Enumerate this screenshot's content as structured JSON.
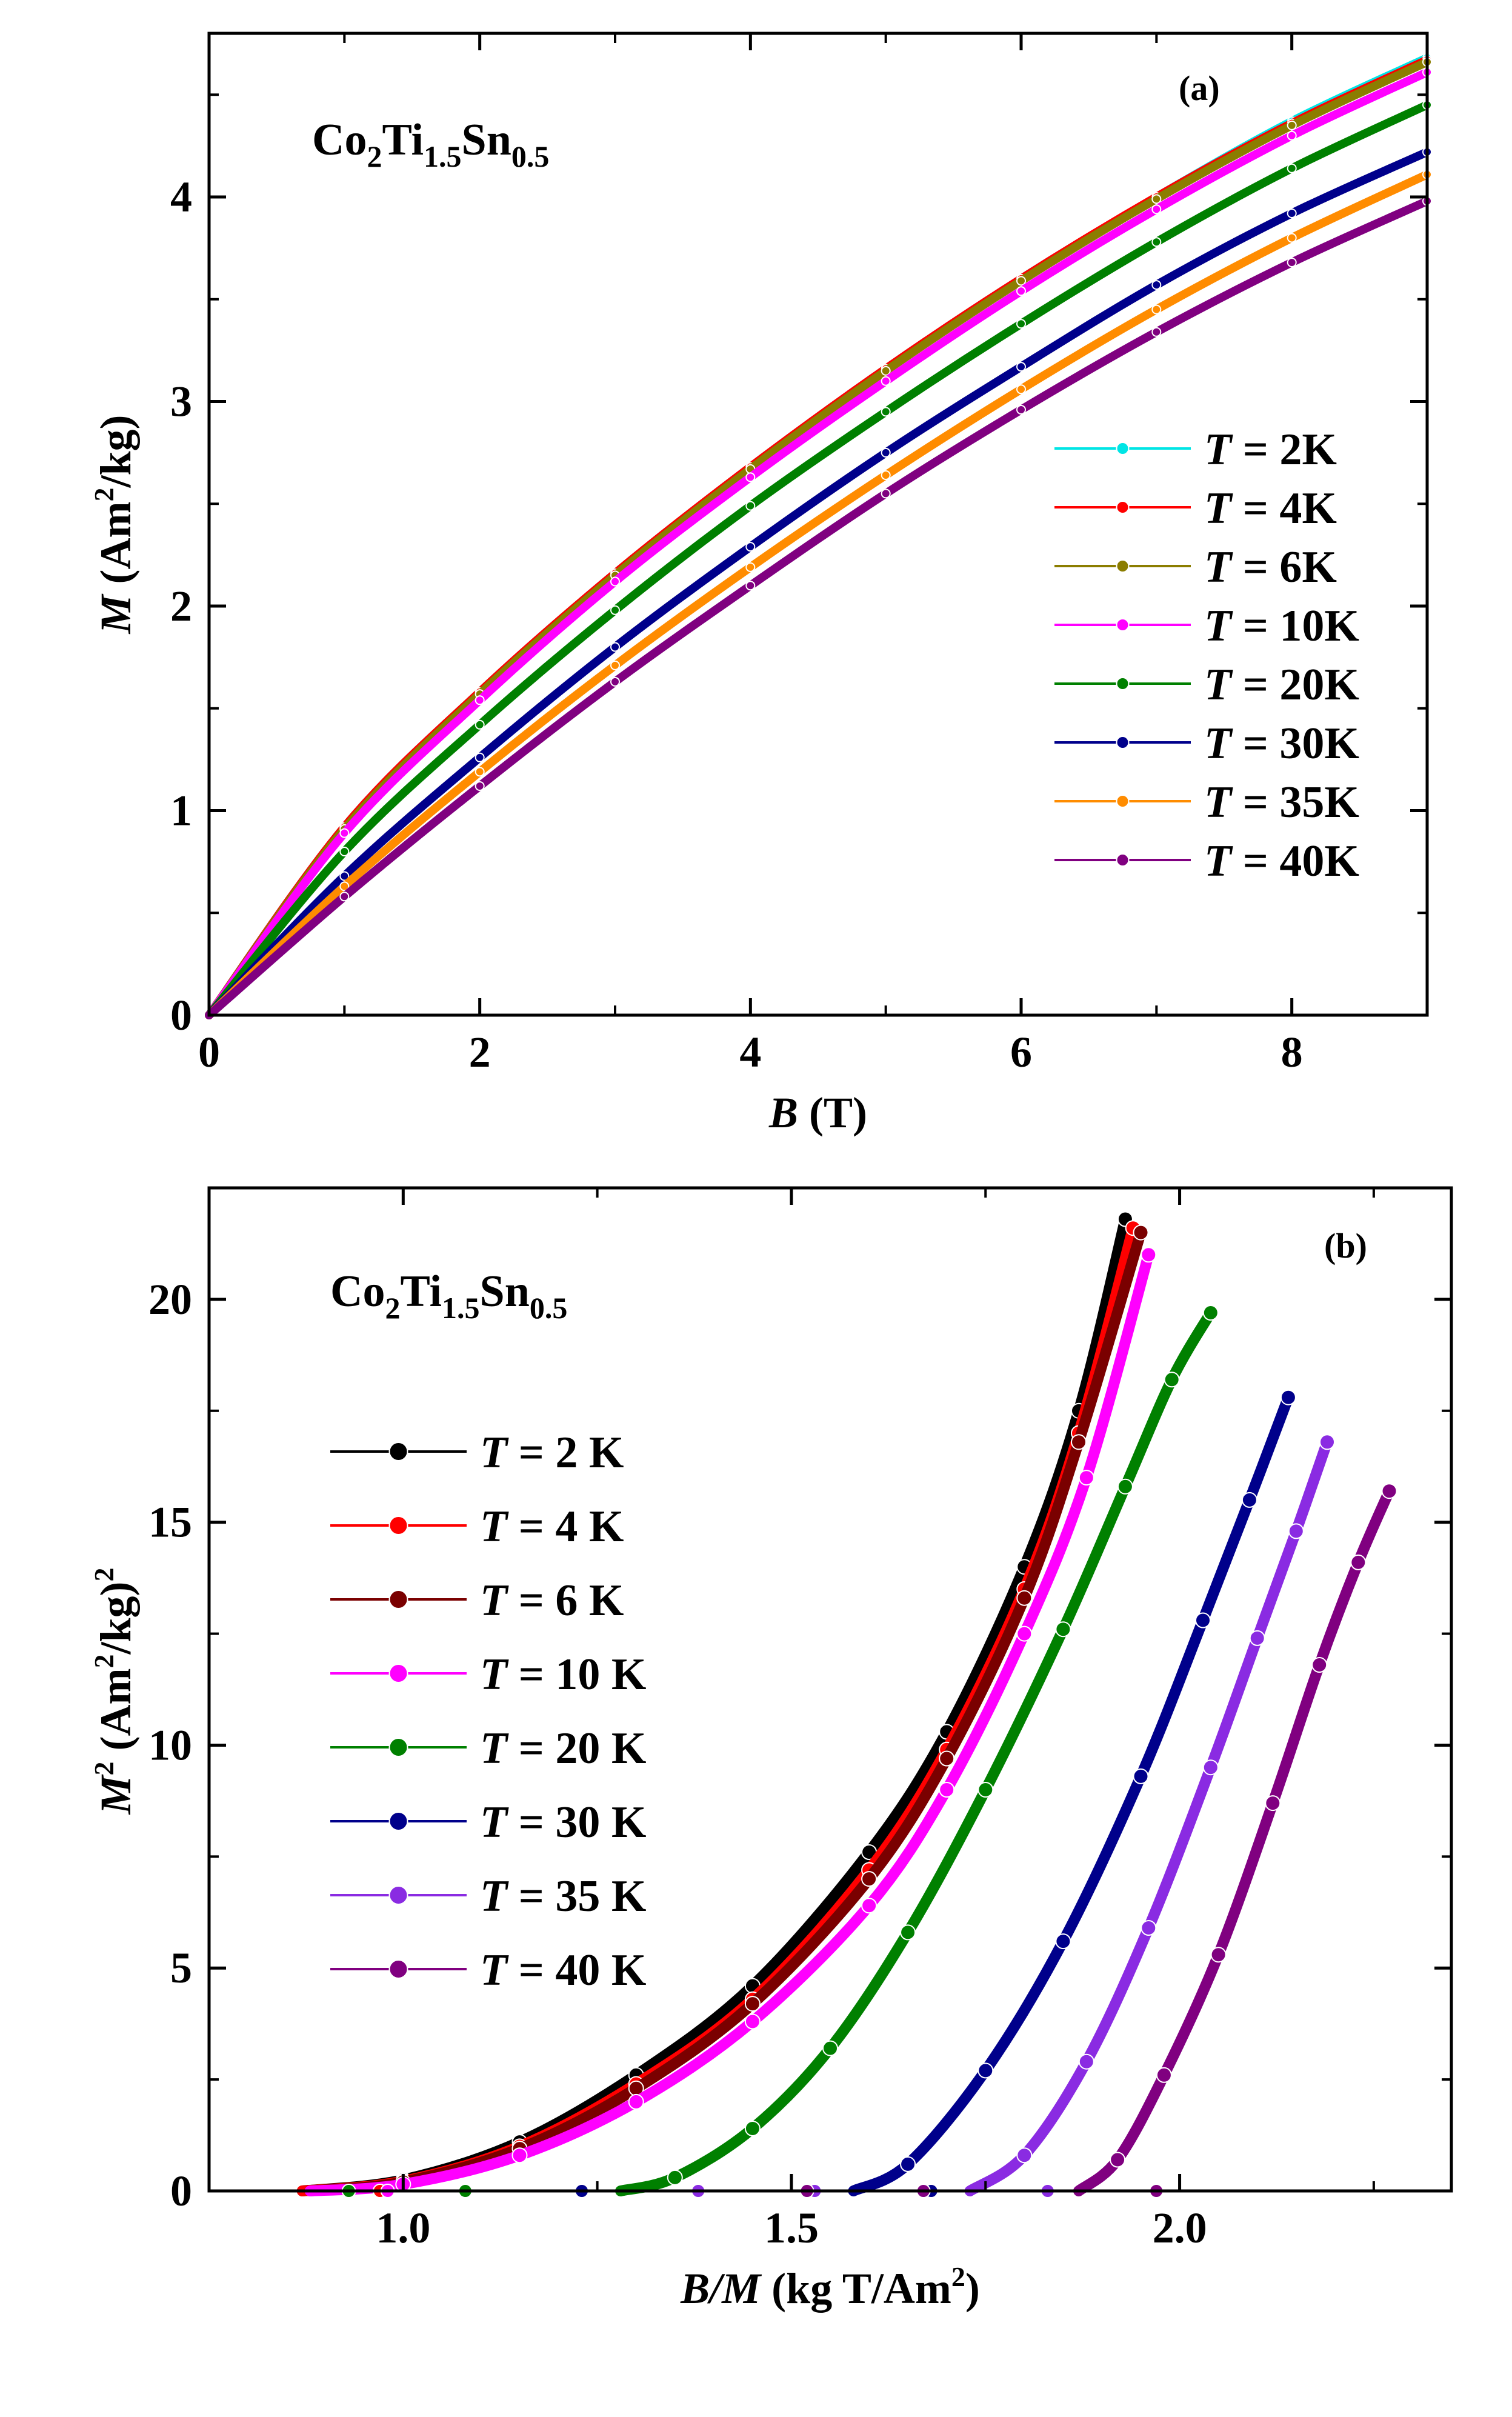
{
  "chart_data": [
    {
      "type": "line",
      "panel_label": "(a)",
      "compound": {
        "base": "Co",
        "s1": "2",
        "el2": "Ti",
        "s2": "1.5",
        "el3": "Sn",
        "s3": "0.5"
      },
      "xlabel": {
        "var": "B",
        "unit": " (T)"
      },
      "ylabel": {
        "var": "M",
        "unit_pre": " (Am",
        "sup": "2",
        "unit_post": "/kg)"
      },
      "xlim": [
        0,
        9
      ],
      "ylim": [
        0,
        4.8
      ],
      "xticks": [
        "0",
        "2",
        "4",
        "6",
        "8"
      ],
      "yticks": [
        "0",
        "1",
        "2",
        "3",
        "4"
      ],
      "legend_position": "right",
      "series": [
        {
          "name": "T = 2K",
          "temp": "2K",
          "color": "#00e5e5",
          "x": [
            0,
            1,
            2,
            3,
            4,
            5,
            6,
            7,
            8,
            9
          ],
          "y": [
            0,
            0.92,
            1.58,
            2.16,
            2.68,
            3.16,
            3.6,
            4.0,
            4.37,
            4.68
          ]
        },
        {
          "name": "T = 4K",
          "temp": "4K",
          "color": "#ff0000",
          "x": [
            0,
            1,
            2,
            3,
            4,
            5,
            6,
            7,
            8,
            9
          ],
          "y": [
            0,
            0.92,
            1.58,
            2.16,
            2.68,
            3.16,
            3.6,
            4.0,
            4.36,
            4.67
          ]
        },
        {
          "name": "T = 6K",
          "temp": "6K",
          "color": "#8b7d00",
          "x": [
            0,
            1,
            2,
            3,
            4,
            5,
            6,
            7,
            8,
            9
          ],
          "y": [
            0,
            0.91,
            1.57,
            2.15,
            2.67,
            3.15,
            3.59,
            3.99,
            4.35,
            4.66
          ]
        },
        {
          "name": "T = 10K",
          "temp": "10K",
          "color": "#ff00ff",
          "x": [
            0,
            1,
            2,
            3,
            4,
            5,
            6,
            7,
            8,
            9
          ],
          "y": [
            0,
            0.89,
            1.54,
            2.12,
            2.63,
            3.1,
            3.54,
            3.94,
            4.3,
            4.61
          ]
        },
        {
          "name": "T = 20K",
          "temp": "20K",
          "color": "#008000",
          "x": [
            0,
            1,
            2,
            3,
            4,
            5,
            6,
            7,
            8,
            9
          ],
          "y": [
            0,
            0.8,
            1.42,
            1.98,
            2.49,
            2.95,
            3.38,
            3.78,
            4.14,
            4.45
          ]
        },
        {
          "name": "T = 30K",
          "temp": "30K",
          "color": "#00008b",
          "x": [
            0,
            1,
            2,
            3,
            4,
            5,
            6,
            7,
            8,
            9
          ],
          "y": [
            0,
            0.68,
            1.26,
            1.8,
            2.29,
            2.75,
            3.17,
            3.57,
            3.92,
            4.22
          ]
        },
        {
          "name": "T = 35K",
          "temp": "35K",
          "color": "#ff8c00",
          "x": [
            0,
            1,
            2,
            3,
            4,
            5,
            6,
            7,
            8,
            9
          ],
          "y": [
            0,
            0.63,
            1.19,
            1.71,
            2.19,
            2.64,
            3.06,
            3.45,
            3.8,
            4.11
          ]
        },
        {
          "name": "T = 40K",
          "temp": "40K",
          "color": "#800080",
          "x": [
            0,
            1,
            2,
            3,
            4,
            5,
            6,
            7,
            8,
            9
          ],
          "y": [
            0,
            0.58,
            1.12,
            1.63,
            2.1,
            2.55,
            2.96,
            3.34,
            3.68,
            3.98
          ]
        }
      ]
    },
    {
      "type": "line",
      "panel_label": "(b)",
      "compound": {
        "base": "Co",
        "s1": "2",
        "el2": "Ti",
        "s2": "1.5",
        "el3": "Sn",
        "s3": "0.5"
      },
      "xlabel": {
        "var": "B/M",
        "unit_pre": " (kg T/Am",
        "sup": "2",
        "unit_post": ")"
      },
      "ylabel": {
        "var": "M",
        "var_sup": "2",
        "unit_pre": " (Am",
        "sup": "2",
        "unit_post": "/kg)",
        "sup2": "2"
      },
      "xlim": [
        0.75,
        2.35
      ],
      "ylim": [
        0,
        22.5
      ],
      "xticks": [
        "1.0",
        "1.5",
        "2.0"
      ],
      "yticks": [
        "0",
        "5",
        "10",
        "15",
        "20"
      ],
      "legend_position": "left",
      "series": [
        {
          "name": "T = 2 K",
          "temp": "2 K",
          "color": "#000000",
          "x": [
            0.87,
            1.0,
            1.15,
            1.3,
            1.45,
            1.6,
            1.7,
            1.8,
            1.87,
            1.93
          ],
          "y": [
            0,
            0.25,
            1.1,
            2.6,
            4.6,
            7.6,
            10.3,
            14.0,
            17.5,
            21.8
          ]
        },
        {
          "name": "T = 4 K",
          "temp": "4 K",
          "color": "#ff0000",
          "x": [
            0.87,
            1.0,
            1.15,
            1.3,
            1.45,
            1.6,
            1.7,
            1.8,
            1.87,
            1.94
          ],
          "y": [
            0,
            0.22,
            1.0,
            2.4,
            4.3,
            7.2,
            9.9,
            13.5,
            17.0,
            21.6
          ]
        },
        {
          "name": "T = 6 K",
          "temp": "6 K",
          "color": "#7a0000",
          "x": [
            0.88,
            1.0,
            1.15,
            1.3,
            1.45,
            1.6,
            1.7,
            1.8,
            1.87,
            1.95
          ],
          "y": [
            0,
            0.2,
            0.95,
            2.3,
            4.2,
            7.0,
            9.7,
            13.3,
            16.8,
            21.5
          ]
        },
        {
          "name": "T = 10 K",
          "temp": "10 K",
          "color": "#ff00ff",
          "x": [
            0.88,
            1.0,
            1.15,
            1.3,
            1.45,
            1.6,
            1.7,
            1.8,
            1.88,
            1.96
          ],
          "y": [
            0,
            0.15,
            0.8,
            2.0,
            3.8,
            6.4,
            9.0,
            12.5,
            16.0,
            21.0
          ]
        },
        {
          "name": "T = 20 K",
          "temp": "20 K",
          "color": "#008000",
          "x": [
            1.28,
            1.35,
            1.45,
            1.55,
            1.65,
            1.75,
            1.85,
            1.93,
            1.99,
            2.04
          ],
          "y": [
            0,
            0.3,
            1.4,
            3.2,
            5.8,
            9.0,
            12.6,
            15.8,
            18.2,
            19.7
          ]
        },
        {
          "name": "T = 30 K",
          "temp": "30 K",
          "color": "#00008b",
          "x": [
            1.58,
            1.65,
            1.75,
            1.85,
            1.95,
            2.03,
            2.09,
            2.14
          ],
          "y": [
            0,
            0.6,
            2.7,
            5.6,
            9.3,
            12.8,
            15.5,
            17.8
          ]
        },
        {
          "name": "T = 35 K",
          "temp": "35 K",
          "color": "#8a2be2",
          "x": [
            1.73,
            1.8,
            1.88,
            1.96,
            2.04,
            2.1,
            2.15,
            2.19
          ],
          "y": [
            0,
            0.8,
            2.9,
            5.9,
            9.5,
            12.4,
            14.8,
            16.8
          ]
        },
        {
          "name": "T = 40 K",
          "temp": "40 K",
          "color": "#800080",
          "x": [
            1.87,
            1.92,
            1.98,
            2.05,
            2.12,
            2.18,
            2.23,
            2.27
          ],
          "y": [
            0,
            0.7,
            2.6,
            5.3,
            8.7,
            11.8,
            14.1,
            15.7
          ]
        }
      ]
    }
  ]
}
